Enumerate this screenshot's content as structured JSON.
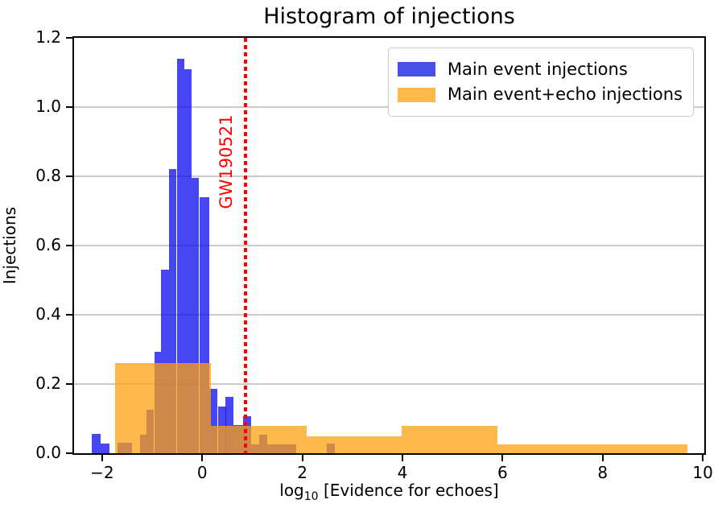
{
  "figure": {
    "title": "Histogram of injections",
    "background_color": "#ffffff"
  },
  "axes": {
    "ylabel": "Injections",
    "xlabel": {
      "prefix": "log",
      "sub": "10",
      "rest": " [Evidence for echoes]"
    },
    "xlim": [
      -2.56,
      10.03
    ],
    "ylim": [
      0,
      1.2
    ],
    "x_ticks": [
      {
        "value": -2,
        "label": "−2"
      },
      {
        "value": 0,
        "label": "0"
      },
      {
        "value": 2,
        "label": "2"
      },
      {
        "value": 4,
        "label": "4"
      },
      {
        "value": 6,
        "label": "6"
      },
      {
        "value": 8,
        "label": "8"
      },
      {
        "value": 10,
        "label": "10"
      }
    ],
    "y_ticks": [
      {
        "value": 0.0,
        "label": "0.0"
      },
      {
        "value": 0.2,
        "label": "0.2"
      },
      {
        "value": 0.4,
        "label": "0.4"
      },
      {
        "value": 0.6,
        "label": "0.6"
      },
      {
        "value": 0.8,
        "label": "0.8"
      },
      {
        "value": 1.0,
        "label": "1.0"
      },
      {
        "value": 1.2,
        "label": "1.2"
      }
    ],
    "grid": "horizontal",
    "grid_color": "#cbcbcb"
  },
  "chart_data": {
    "type": "bar",
    "subtype": "histogram",
    "title": "Histogram of injections",
    "xlabel": "log10 [Evidence for echoes]",
    "ylabel": "Injections",
    "xlim": [
      -2.56,
      10.03
    ],
    "ylim": [
      0,
      1.2
    ],
    "legend_position": "upper-right",
    "series": [
      {
        "name": "Main event injections",
        "legend_color": "#4a4fe8",
        "fill": "rgba(15,15,238,0.77)",
        "bins": [
          [
            -2.2,
            -2.03,
            0.056
          ],
          [
            -2.03,
            -1.86,
            0.028
          ],
          [
            -1.7,
            -1.53,
            0.03
          ],
          [
            -1.53,
            -1.41,
            0.03
          ],
          [
            -1.25,
            -1.11,
            0.053
          ],
          [
            -1.11,
            -0.96,
            0.126
          ],
          [
            -0.96,
            -0.82,
            0.293
          ],
          [
            -0.82,
            -0.66,
            0.53
          ],
          [
            -0.66,
            -0.51,
            0.82
          ],
          [
            -0.51,
            -0.36,
            1.14
          ],
          [
            -0.36,
            -0.21,
            1.11
          ],
          [
            -0.21,
            -0.06,
            0.795
          ],
          [
            -0.06,
            0.145,
            0.74
          ],
          [
            0.145,
            0.31,
            0.186
          ],
          [
            0.31,
            0.47,
            0.135
          ],
          [
            0.47,
            0.63,
            0.163
          ],
          [
            0.63,
            0.81,
            0.081
          ],
          [
            0.81,
            0.98,
            0.107
          ],
          [
            0.98,
            1.14,
            0.026
          ],
          [
            1.14,
            1.3,
            0.053
          ],
          [
            1.3,
            1.88,
            0.026
          ],
          [
            2.49,
            2.65,
            0.028
          ]
        ]
      },
      {
        "name": "Main event+echo injections",
        "legend_color": "#fcba4c",
        "fill": "rgba(253,160,15,0.74)",
        "bins": [
          [
            -1.74,
            0.17,
            0.26
          ],
          [
            0.17,
            2.08,
            0.08
          ],
          [
            2.08,
            3.99,
            0.049
          ],
          [
            3.99,
            5.9,
            0.079
          ],
          [
            5.9,
            7.81,
            0.026
          ],
          [
            7.81,
            9.7,
            0.026
          ]
        ]
      }
    ],
    "annotation": {
      "label": "GW190521",
      "x": 0.87,
      "color": "#ff0000",
      "line_style": "dotted-vertical"
    }
  },
  "legend": {
    "items": [
      {
        "label": "Main event injections",
        "color": "#4a4fe8"
      },
      {
        "label": "Main event+echo injections",
        "color": "#fcba4c"
      }
    ]
  }
}
